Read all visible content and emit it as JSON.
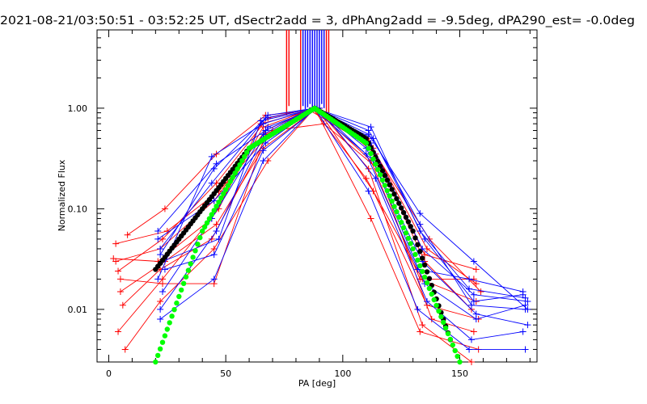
{
  "chart_data": {
    "type": "line",
    "title": "2021-08-21/03:50:51 - 03:52:25 UT, dSectr2add = 3, dPhAng2add = -9.5deg, dPA290_est= -0.0deg",
    "xlabel": "PA [deg]",
    "ylabel": "Normalized Flux",
    "xlim": [
      -5,
      183
    ],
    "ylim": [
      0.003,
      6.0
    ],
    "yscale": "log",
    "x_ticks": [
      "0",
      "50",
      "100",
      "150"
    ],
    "y_ticks": [
      "0.01",
      "0.10",
      "1.00"
    ],
    "colors": {
      "red": "#ff0000",
      "blue": "#0000ff",
      "black": "#000000",
      "green": "#00ff00"
    },
    "series": [
      {
        "color": "red",
        "style": "lines with plus markers",
        "traces": [
          [
            [
              3,
              0.03
            ],
            [
              22,
              0.04
            ],
            [
              45,
              0.12
            ],
            [
              67,
              0.6
            ],
            [
              88,
              1.0
            ],
            [
              112,
              0.3
            ],
            [
              133,
              0.02
            ],
            [
              157,
              0.012
            ]
          ],
          [
            [
              4,
              0.024
            ],
            [
              23,
              0.05
            ],
            [
              46,
              0.18
            ],
            [
              68,
              0.8
            ],
            [
              88,
              1.0
            ],
            [
              111,
              0.5
            ],
            [
              135,
              0.03
            ],
            [
              155,
              0.01
            ]
          ],
          [
            [
              5,
              0.015
            ],
            [
              24,
              0.03
            ],
            [
              46,
              0.07
            ],
            [
              66,
              0.4
            ],
            [
              89,
              1.0
            ],
            [
              113,
              0.15
            ],
            [
              136,
              0.011
            ],
            [
              158,
              0.008
            ]
          ],
          [
            [
              6,
              0.011
            ],
            [
              22,
              0.025
            ],
            [
              44,
              0.05
            ],
            [
              67,
              0.5
            ],
            [
              87,
              1.0
            ],
            [
              110,
              0.2
            ],
            [
              134,
              0.02
            ],
            [
              156,
              0.02
            ]
          ],
          [
            [
              4,
              0.006
            ],
            [
              23,
              0.02
            ],
            [
              47,
              0.1
            ],
            [
              65,
              0.7
            ],
            [
              90,
              1.0
            ],
            [
              114,
              0.35
            ],
            [
              137,
              0.05
            ],
            [
              159,
              0.015
            ]
          ],
          [
            [
              7,
              0.004
            ],
            [
              22,
              0.012
            ],
            [
              45,
              0.04
            ],
            [
              68,
              0.3
            ],
            [
              88,
              1.0
            ],
            [
              112,
              0.08
            ],
            [
              133,
              0.006
            ],
            [
              158,
              0.004
            ]
          ],
          [
            [
              8,
              0.055
            ],
            [
              24,
              0.1
            ],
            [
              46,
              0.35
            ],
            [
              67,
              0.85
            ],
            [
              86,
              0.95
            ],
            [
              113,
              0.4
            ],
            [
              136,
              0.04
            ],
            [
              157,
              0.018
            ]
          ],
          [
            [
              3,
              0.045
            ],
            [
              25,
              0.06
            ],
            [
              47,
              0.15
            ],
            [
              70,
              0.6
            ],
            [
              92,
              0.7
            ],
            [
              115,
              0.25
            ],
            [
              138,
              0.008
            ],
            [
              156,
              0.006
            ]
          ],
          [
            [
              2,
              0.032
            ],
            [
              21,
              0.03
            ],
            [
              44,
              0.08
            ],
            [
              66,
              0.65
            ],
            [
              88,
              1.0
            ],
            [
              112,
              0.45
            ],
            [
              135,
              0.035
            ],
            [
              157,
              0.025
            ]
          ],
          [
            [
              5,
              0.02
            ],
            [
              23,
              0.018
            ],
            [
              45,
              0.018
            ],
            [
              67,
              0.55
            ],
            [
              89,
              1.0
            ],
            [
              111,
              0.25
            ],
            [
              134,
              0.007
            ],
            [
              155,
              0.003
            ]
          ]
        ]
      },
      {
        "color": "blue",
        "style": "lines with plus markers",
        "traces": [
          [
            [
              21,
              0.02
            ],
            [
              44,
              0.33
            ],
            [
              66,
              0.7
            ],
            [
              88,
              1.0
            ],
            [
              111,
              0.6
            ],
            [
              133,
              0.07
            ],
            [
              155,
              0.011
            ],
            [
              178,
              0.01
            ]
          ],
          [
            [
              22,
              0.035
            ],
            [
              45,
              0.25
            ],
            [
              67,
              0.8
            ],
            [
              88,
              1.0
            ],
            [
              112,
              0.45
            ],
            [
              134,
              0.04
            ],
            [
              156,
              0.014
            ],
            [
              179,
              0.012
            ]
          ],
          [
            [
              23,
              0.015
            ],
            [
              44,
              0.08
            ],
            [
              66,
              0.55
            ],
            [
              87,
              1.0
            ],
            [
              110,
              0.35
            ],
            [
              132,
              0.025
            ],
            [
              154,
              0.02
            ],
            [
              177,
              0.015
            ]
          ],
          [
            [
              22,
              0.01
            ],
            [
              46,
              0.06
            ],
            [
              68,
              0.65
            ],
            [
              89,
              1.0
            ],
            [
              113,
              0.3
            ],
            [
              135,
              0.018
            ],
            [
              157,
              0.008
            ],
            [
              178,
              0.011
            ]
          ],
          [
            [
              21,
              0.05
            ],
            [
              45,
              0.12
            ],
            [
              67,
              0.45
            ],
            [
              88,
              1.0
            ],
            [
              111,
              0.55
            ],
            [
              133,
              0.09
            ],
            [
              156,
              0.03
            ],
            [
              179,
              0.01
            ]
          ],
          [
            [
              23,
              0.03
            ],
            [
              47,
              0.05
            ],
            [
              65,
              0.75
            ],
            [
              90,
              1.0
            ],
            [
              114,
              0.2
            ],
            [
              136,
              0.012
            ],
            [
              155,
              0.005
            ],
            [
              177,
              0.006
            ]
          ],
          [
            [
              22,
              0.04
            ],
            [
              44,
              0.18
            ],
            [
              68,
              0.85
            ],
            [
              88,
              1.0
            ],
            [
              112,
              0.65
            ],
            [
              133,
              0.06
            ],
            [
              154,
              0.016
            ],
            [
              178,
              0.013
            ]
          ],
          [
            [
              24,
              0.025
            ],
            [
              45,
              0.035
            ],
            [
              66,
              0.38
            ],
            [
              89,
              1.0
            ],
            [
              110,
              0.4
            ],
            [
              134,
              0.03
            ],
            [
              157,
              0.009
            ],
            [
              179,
              0.007
            ]
          ],
          [
            [
              21,
              0.06
            ],
            [
              46,
              0.28
            ],
            [
              67,
              0.6
            ],
            [
              87,
              1.0
            ],
            [
              113,
              0.5
            ],
            [
              135,
              0.05
            ],
            [
              156,
              0.012
            ],
            [
              177,
              0.014
            ]
          ],
          [
            [
              22,
              0.008
            ],
            [
              45,
              0.02
            ],
            [
              66,
              0.3
            ],
            [
              88,
              1.0
            ],
            [
              111,
              0.15
            ],
            [
              132,
              0.01
            ],
            [
              154,
              0.004
            ],
            [
              178,
              0.004
            ]
          ]
        ]
      },
      {
        "color": "black",
        "style": "filled circles",
        "model": "lognormal-like peak",
        "peak_x": 88,
        "points": [
          [
            20,
            0.025
          ],
          [
            40,
            0.1
          ],
          [
            60,
            0.4
          ],
          [
            88,
            1.0
          ],
          [
            110,
            0.5
          ],
          [
            130,
            0.06
          ],
          [
            146,
            0.005
          ]
        ]
      },
      {
        "color": "green",
        "style": "filled circles",
        "model": "gaussian peak",
        "peak_x": 88,
        "points": [
          [
            20,
            0.003
          ],
          [
            40,
            0.06
          ],
          [
            60,
            0.4
          ],
          [
            88,
            1.0
          ],
          [
            110,
            0.45
          ],
          [
            130,
            0.04
          ],
          [
            150,
            0.003
          ]
        ]
      }
    ],
    "spikes": [
      {
        "color": "red",
        "x": [
          76,
          77,
          82
        ]
      },
      {
        "color": "blue",
        "x": [
          83,
          84,
          85,
          86,
          87,
          88,
          89,
          90,
          91,
          92
        ]
      },
      {
        "color": "red",
        "x": [
          93,
          94
        ]
      }
    ],
    "grid": false,
    "legend": "none"
  }
}
